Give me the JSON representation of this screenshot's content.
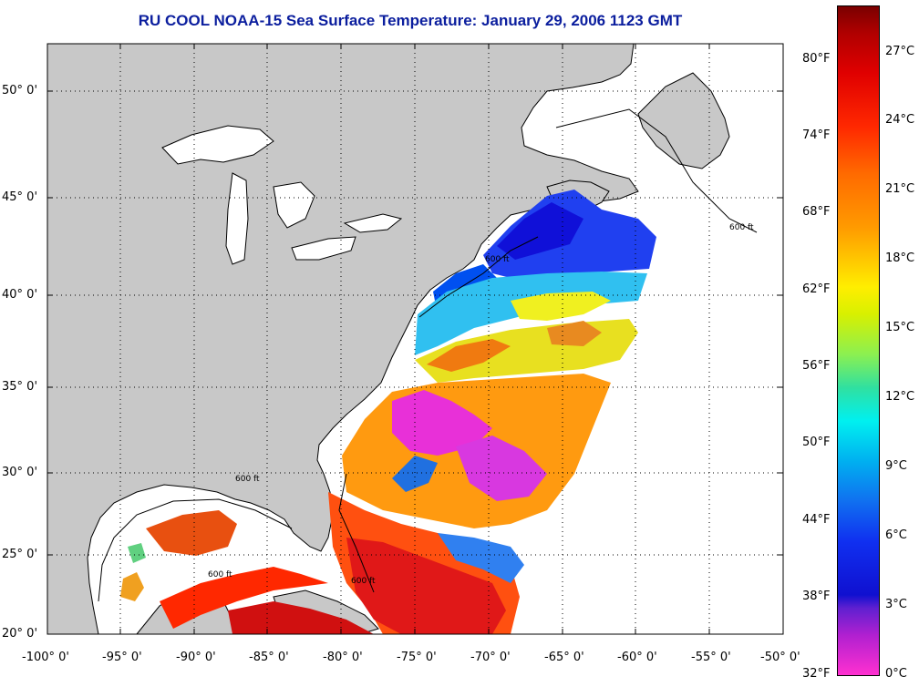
{
  "title": "RU COOL  NOAA-15  Sea Surface Temperature:  January 29, 2006 1123 GMT",
  "map": {
    "lat_range": [
      20,
      52.5
    ],
    "lon_range": [
      -100,
      -50
    ],
    "lat_ticks": [
      "50° 0'",
      "45° 0'",
      "40° 0'",
      "35° 0'",
      "30° 0'",
      "25° 0'",
      "20° 0'"
    ],
    "lon_ticks": [
      "-100° 0'",
      "-95° 0'",
      "-90° 0'",
      "-85° 0'",
      "-80° 0'",
      "-75° 0'",
      "-70° 0'",
      "-65° 0'",
      "-60° 0'",
      "-55° 0'",
      "-50° 0'"
    ],
    "isobath_label": "600 ft",
    "land_color": "#c8c8c8",
    "water_color": "#ffffff"
  },
  "colorbar": {
    "fahrenheit_labels": [
      "80°F",
      "74°F",
      "68°F",
      "62°F",
      "56°F",
      "50°F",
      "44°F",
      "38°F",
      "32°F"
    ],
    "celsius_labels": [
      "27°C",
      "24°C",
      "21°C",
      "18°C",
      "15°C",
      "12°C",
      "9°C",
      "6°C",
      "3°C",
      "0°C"
    ],
    "range_c": [
      0,
      29
    ]
  }
}
